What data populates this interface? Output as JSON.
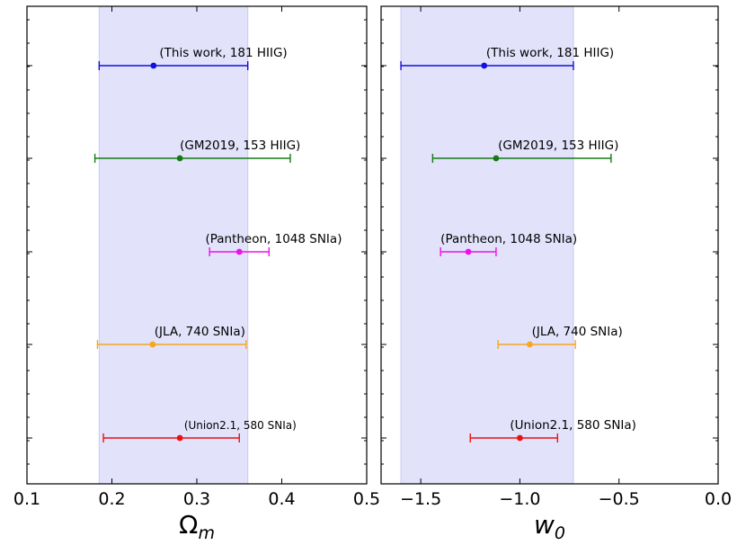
{
  "chart_data": [
    {
      "type": "errorbar",
      "xlabel": "Ω_m",
      "xlim": [
        0.1,
        0.5
      ],
      "xticks": [
        "0.1",
        "0.2",
        "0.3",
        "0.4",
        "0.5"
      ],
      "xtick_values": [
        0.1,
        0.2,
        0.3,
        0.4,
        0.5
      ],
      "band": [
        0.185,
        0.36
      ],
      "band_color": "#e2e2fb",
      "points": [
        {
          "label": "(This work, 181 HIIG)",
          "value": 0.249,
          "low": 0.185,
          "high": 0.36,
          "color": "#1010e0",
          "label_x": 0.256
        },
        {
          "label": "(GM2019, 153 HIIG)",
          "value": 0.28,
          "low": 0.18,
          "high": 0.41,
          "color": "#157a15",
          "label_x": 0.28
        },
        {
          "label": "(Pantheon, 1048 SNIa)",
          "value": 0.35,
          "low": 0.315,
          "high": 0.385,
          "color": "#ee10ee",
          "label_x": 0.31
        },
        {
          "label": "(JLA, 740 SNIa)",
          "value": 0.248,
          "low": 0.183,
          "high": 0.358,
          "color": "#f5a623",
          "label_x": 0.25
        },
        {
          "label": "(Union2.1, 580 SNIa)",
          "value": 0.28,
          "low": 0.19,
          "high": 0.35,
          "color": "#ee1010",
          "label_x": 0.285,
          "small": true
        }
      ]
    },
    {
      "type": "errorbar",
      "xlabel": "w_0",
      "xlim": [
        -1.7,
        0.0
      ],
      "xticks": [
        "−1.5",
        "−1.0",
        "−0.5",
        "0.0"
      ],
      "xtick_values": [
        -1.5,
        -1.0,
        -0.5,
        0.0
      ],
      "band": [
        -1.6,
        -0.73
      ],
      "band_color": "#e2e2fb",
      "points": [
        {
          "label": "(This work, 181 HIIG)",
          "value": -1.18,
          "low": -1.6,
          "high": -0.73,
          "color": "#1010e0",
          "label_x": -1.17
        },
        {
          "label": "(GM2019, 153 HIIG)",
          "value": -1.12,
          "low": -1.44,
          "high": -0.54,
          "color": "#157a15",
          "label_x": -1.11
        },
        {
          "label": "(Pantheon, 1048 SNIa)",
          "value": -1.26,
          "low": -1.4,
          "high": -1.12,
          "color": "#ee10ee",
          "label_x": -1.4
        },
        {
          "label": "(JLA, 740 SNIa)",
          "value": -0.95,
          "low": -1.11,
          "high": -0.72,
          "color": "#f5a623",
          "label_x": -0.94
        },
        {
          "label": "(Union2.1, 580 SNIa)",
          "value": -1.0,
          "low": -1.25,
          "high": -0.81,
          "color": "#ee1010",
          "label_x": -1.05
        }
      ]
    }
  ]
}
